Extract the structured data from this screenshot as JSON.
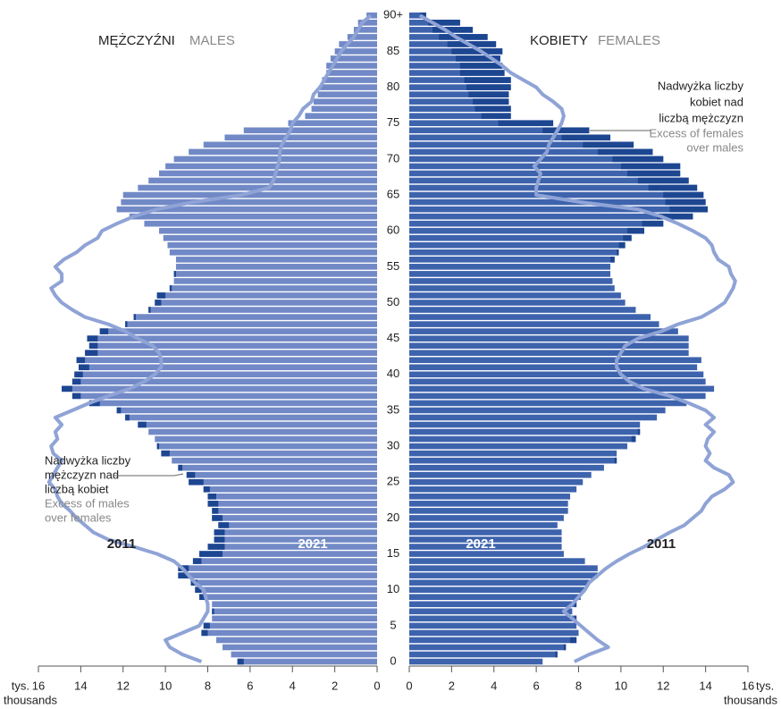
{
  "chart_data": {
    "type": "population_pyramid",
    "categories": [
      0,
      null,
      null,
      null,
      null,
      5,
      null,
      null,
      null,
      null,
      10,
      null,
      null,
      null,
      null,
      15,
      null,
      null,
      null,
      null,
      20,
      null,
      null,
      null,
      null,
      25,
      null,
      null,
      null,
      null,
      30,
      null,
      null,
      null,
      null,
      35,
      null,
      null,
      null,
      null,
      40,
      null,
      null,
      null,
      null,
      45,
      null,
      null,
      null,
      null,
      50,
      null,
      null,
      null,
      null,
      55,
      null,
      null,
      null,
      null,
      60,
      null,
      null,
      null,
      null,
      65,
      null,
      null,
      null,
      null,
      70,
      null,
      null,
      null,
      null,
      75,
      null,
      null,
      null,
      null,
      80,
      null,
      null,
      null,
      null,
      85,
      null,
      null,
      null,
      null,
      "90+"
    ],
    "xlim": [
      0,
      16
    ],
    "xticks": [
      0,
      2,
      4,
      6,
      8,
      10,
      12,
      14,
      16
    ],
    "unit_label": "tys.",
    "unit_label_en": "thousands",
    "excess_color": "#1d4691",
    "males": {
      "title": "MĘŻCZYŹNI",
      "title_en": "MALES",
      "series": [
        {
          "name": "2021",
          "color": "#7189c6",
          "values": [
            6.6,
            6.9,
            7.3,
            7.6,
            8.3,
            8.2,
            7.8,
            7.8,
            7.8,
            8.4,
            8.6,
            8.8,
            9.4,
            9.4,
            8.7,
            8.4,
            8.0,
            7.7,
            7.7,
            7.5,
            7.8,
            7.8,
            8.0,
            8.0,
            8.2,
            8.9,
            9.0,
            9.4,
            9.7,
            10.2,
            10.4,
            10.5,
            10.8,
            11.3,
            11.9,
            12.3,
            13.6,
            14.4,
            14.9,
            14.4,
            14.3,
            14.1,
            14.2,
            13.8,
            13.6,
            13.7,
            13.1,
            11.9,
            11.5,
            10.8,
            10.5,
            10.4,
            9.8,
            9.6,
            9.6,
            9.5,
            9.5,
            9.8,
            9.9,
            10.1,
            10.3,
            11.0,
            11.7,
            12.3,
            12.1,
            12.0,
            11.3,
            10.8,
            10.3,
            10.0,
            9.6,
            8.9,
            8.2,
            7.2,
            6.3,
            4.2,
            3.4,
            3.1,
            3.0,
            2.8,
            2.7,
            2.6,
            2.4,
            2.4,
            2.2,
            2.0,
            1.8,
            1.4,
            1.1,
            0.9,
            0.5
          ]
        },
        {
          "name": "2011",
          "color": "#8fa3d6",
          "values": [
            8.3,
            9.2,
            9.8,
            10.0,
            9.2,
            8.4,
            8.2,
            8.0,
            8.0,
            8.1,
            8.2,
            8.6,
            8.9,
            9.2,
            9.6,
            10.4,
            11.5,
            12.7,
            13.4,
            13.8,
            14.2,
            14.5,
            14.9,
            15.1,
            15.2,
            15.5,
            15.3,
            15.1,
            14.9,
            15.3,
            15.4,
            15.1,
            15.2,
            14.9,
            15.2,
            14.4,
            13.6,
            12.7,
            11.7,
            11.0,
            10.5,
            10.2,
            10.2,
            10.3,
            10.6,
            11.3,
            11.9,
            12.7,
            13.8,
            14.4,
            14.9,
            15.2,
            15.4,
            14.9,
            14.9,
            15.2,
            14.8,
            14.2,
            13.8,
            13.2,
            13.0,
            12.3,
            11.5,
            10.4,
            8.7,
            6.4,
            5.1,
            4.9,
            4.8,
            4.7,
            4.6,
            4.6,
            4.5,
            4.3,
            4.1,
            4.0,
            3.7,
            3.5,
            3.1,
            3.0,
            2.7,
            2.5,
            2.3,
            2.1,
            1.9,
            1.7,
            1.4,
            1.1,
            0.9,
            0.7,
            0.3
          ]
        }
      ],
      "annotation": [
        "Nadwyżka liczby",
        "mężczyzn nad",
        "liczbą kobiet"
      ],
      "annotation_en": [
        "Excess of males",
        "over females"
      ]
    },
    "females": {
      "title": "KOBIETY",
      "title_en": "FEMALES",
      "series": [
        {
          "name": "2021",
          "color": "#3e63ad",
          "values": [
            6.3,
            7.0,
            7.4,
            7.9,
            8.0,
            7.9,
            7.9,
            7.7,
            7.9,
            8.1,
            8.3,
            8.5,
            8.9,
            8.9,
            8.3,
            7.3,
            7.2,
            7.2,
            7.2,
            7.0,
            7.3,
            7.5,
            7.5,
            7.6,
            7.9,
            8.2,
            8.6,
            9.2,
            9.8,
            9.8,
            10.3,
            10.7,
            10.9,
            10.9,
            11.7,
            12.1,
            13.1,
            14.0,
            14.4,
            14.0,
            13.9,
            13.6,
            13.8,
            13.2,
            13.2,
            13.2,
            12.7,
            11.8,
            11.4,
            10.7,
            10.2,
            10.0,
            9.7,
            9.6,
            9.5,
            9.5,
            9.7,
            9.9,
            10.2,
            10.5,
            11.1,
            12.0,
            13.4,
            14.1,
            14.0,
            13.9,
            13.6,
            13.2,
            12.8,
            12.8,
            12.0,
            11.5,
            10.6,
            9.5,
            8.5,
            6.8,
            4.8,
            4.8,
            4.7,
            4.7,
            4.8,
            4.8,
            4.5,
            4.4,
            4.3,
            4.4,
            4.1,
            3.7,
            3.0,
            2.4,
            0.8
          ]
        },
        {
          "name": "2011",
          "color": "#8fa3d6",
          "values": [
            7.8,
            8.5,
            9.4,
            8.9,
            8.5,
            8.1,
            7.7,
            7.3,
            7.7,
            8.0,
            8.3,
            8.5,
            8.9,
            9.3,
            9.8,
            10.4,
            11.1,
            11.7,
            12.3,
            13.0,
            13.4,
            13.8,
            14.0,
            14.3,
            14.9,
            15.3,
            15.1,
            14.4,
            14.0,
            14.2,
            14.0,
            14.1,
            14.4,
            14.0,
            14.4,
            14.0,
            13.2,
            12.3,
            11.1,
            10.4,
            10.0,
            9.8,
            9.8,
            10.0,
            10.2,
            10.8,
            11.9,
            12.7,
            13.8,
            14.4,
            14.9,
            15.1,
            15.3,
            15.4,
            15.2,
            15.1,
            14.6,
            14.4,
            14.3,
            14.0,
            13.4,
            12.7,
            11.9,
            10.8,
            8.1,
            6.0,
            6.0,
            6.1,
            6.2,
            5.9,
            6.2,
            6.5,
            6.6,
            6.8,
            7.0,
            7.2,
            7.3,
            7.2,
            6.8,
            6.3,
            6.0,
            5.4,
            4.8,
            4.4,
            3.9,
            3.4,
            2.8,
            2.2,
            1.7,
            1.1,
            0.5
          ]
        }
      ],
      "annotation": [
        "Nadwyżka liczby",
        "kobiet nad",
        "liczbą mężczyzn"
      ],
      "annotation_en": [
        "Excess of females",
        "over males"
      ]
    }
  }
}
